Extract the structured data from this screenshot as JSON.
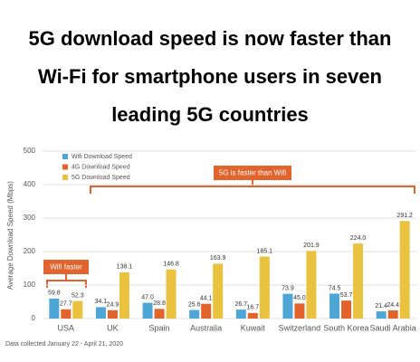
{
  "chart_data": {
    "type": "bar",
    "title": "5G download speed is now faster than Wi-Fi for smartphone users in seven leading 5G countries",
    "y_label": "Average Download Speed (Mbps)",
    "footnote": "Data collected January 22 - April 21, 2020",
    "annotations": [
      "5G is faster than Wifi",
      "Wifi faster"
    ],
    "categories": [
      "USA",
      "UK",
      "Spain",
      "Australia",
      "Kuwait",
      "Switzerland",
      "South Korea",
      "Saudi Arabia"
    ],
    "series": [
      {
        "name": "Wifi Download Speed",
        "color": "#4ea6d6",
        "values": [
          59.8,
          34.1,
          47.0,
          25.6,
          26.7,
          73.9,
          74.5,
          21.4
        ],
        "value_labels": [
          "59.8",
          "34.1",
          "47.0",
          "25.6",
          "26.7",
          "73.9",
          "74.5",
          "21.4"
        ]
      },
      {
        "name": "4G Download Speed",
        "color": "#e2632b",
        "values": [
          27.7,
          24.9,
          28.8,
          44.1,
          16.7,
          45.0,
          53.7,
          24.4
        ],
        "value_labels": [
          "27.7",
          "24.9",
          "28.8",
          "44.1",
          "16.7",
          "45.0",
          "53.7",
          "24.4"
        ]
      },
      {
        "name": "5G Download Speed",
        "color": "#e9c23f",
        "values": [
          52.3,
          138.1,
          146.8,
          163.9,
          185.1,
          201.9,
          224.0,
          291.2
        ],
        "value_labels": [
          "52.3",
          "138.1",
          "146.8",
          "163.9",
          "185.1",
          "201.9",
          "224.0",
          "291.2"
        ]
      }
    ],
    "ylim": [
      0,
      500
    ],
    "yticks": [
      0,
      100,
      200,
      300,
      400,
      500
    ],
    "grid": true,
    "legend": "upper left"
  }
}
